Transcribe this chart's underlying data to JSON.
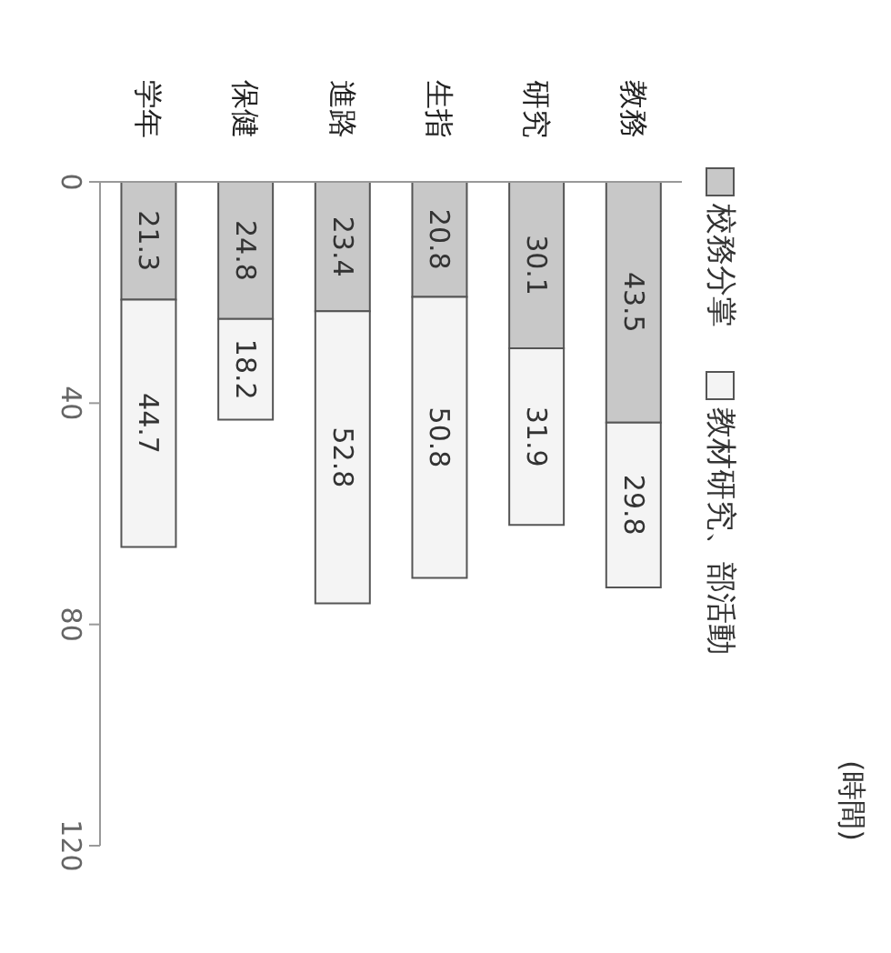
{
  "chart_data": {
    "type": "bar",
    "stacked": true,
    "annotations": [
      "(時間)"
    ],
    "categories": [
      "学年",
      "保健",
      "進路",
      "生指",
      "研究",
      "教務"
    ],
    "series": [
      {
        "name": "校務分掌",
        "color": "#c8c8c8",
        "values": [
          21.3,
          24.8,
          23.4,
          20.8,
          30.1,
          43.5
        ]
      },
      {
        "name": "教材研究、部活動",
        "color": "#f4f4f4",
        "values": [
          44.7,
          18.2,
          52.8,
          50.8,
          31.9,
          29.8
        ]
      }
    ],
    "ylim": [
      120,
      0
    ],
    "yticks": [
      0,
      40,
      80,
      120
    ],
    "data_labels": true,
    "legend": "right",
    "grid": false
  }
}
